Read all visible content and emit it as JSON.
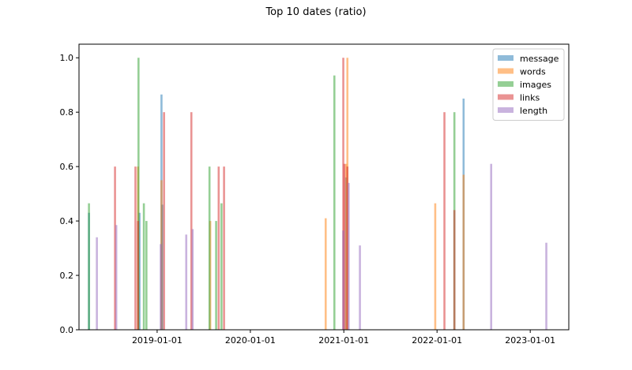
{
  "chart_data": {
    "type": "bar",
    "title": "Top 10 dates (ratio)",
    "xlabel": "",
    "ylabel": "",
    "x_axis": "date",
    "xlim": [
      "2018-03-01",
      "2023-06-01"
    ],
    "ylim": [
      0,
      1.05
    ],
    "x_ticks": [
      "2019-01-01",
      "2020-01-01",
      "2021-01-01",
      "2022-01-01",
      "2023-01-01"
    ],
    "y_ticks": [
      "0.0",
      "0.2",
      "0.4",
      "0.6",
      "0.8",
      "1.0"
    ],
    "grid": false,
    "legend_position": "top-right",
    "bar_alpha": 0.5,
    "series": [
      {
        "name": "message",
        "color": "#1f77b4",
        "points": [
          {
            "x": "2018-04-09",
            "y": 0.43
          },
          {
            "x": "2018-10-24",
            "y": 0.43
          },
          {
            "x": "2019-01-18",
            "y": 0.865
          },
          {
            "x": "2019-01-21",
            "y": 0.46
          },
          {
            "x": "2021-01-10",
            "y": 0.56
          },
          {
            "x": "2022-04-15",
            "y": 0.85
          }
        ]
      },
      {
        "name": "words",
        "color": "#ff7f0e",
        "points": [
          {
            "x": "2018-10-18",
            "y": 0.6
          },
          {
            "x": "2019-01-18",
            "y": 0.55
          },
          {
            "x": "2019-07-28",
            "y": 0.4
          },
          {
            "x": "2020-10-22",
            "y": 0.41
          },
          {
            "x": "2021-01-10",
            "y": 0.61
          },
          {
            "x": "2021-01-15",
            "y": 1.0
          },
          {
            "x": "2021-12-25",
            "y": 0.465
          },
          {
            "x": "2022-04-15",
            "y": 0.57
          }
        ]
      },
      {
        "name": "images",
        "color": "#2ca02c",
        "points": [
          {
            "x": "2018-04-09",
            "y": 0.465
          },
          {
            "x": "2018-10-20",
            "y": 1.0
          },
          {
            "x": "2018-11-10",
            "y": 0.465
          },
          {
            "x": "2018-11-20",
            "y": 0.4
          },
          {
            "x": "2019-07-25",
            "y": 0.6
          },
          {
            "x": "2019-08-20",
            "y": 0.4
          },
          {
            "x": "2019-09-10",
            "y": 0.465
          },
          {
            "x": "2020-11-25",
            "y": 0.935
          },
          {
            "x": "2022-03-10",
            "y": 0.8
          }
        ]
      },
      {
        "name": "links",
        "color": "#d62728",
        "points": [
          {
            "x": "2018-07-20",
            "y": 0.6
          },
          {
            "x": "2018-10-08",
            "y": 0.6
          },
          {
            "x": "2018-10-18",
            "y": 0.4
          },
          {
            "x": "2019-01-28",
            "y": 0.8
          },
          {
            "x": "2019-05-15",
            "y": 0.8
          },
          {
            "x": "2019-08-30",
            "y": 0.6
          },
          {
            "x": "2019-09-20",
            "y": 0.6
          },
          {
            "x": "2020-12-30",
            "y": 1.0
          },
          {
            "x": "2021-01-03",
            "y": 0.61
          },
          {
            "x": "2021-01-15",
            "y": 0.6
          },
          {
            "x": "2022-01-30",
            "y": 0.8
          },
          {
            "x": "2022-03-10",
            "y": 0.44
          }
        ]
      },
      {
        "name": "length",
        "color": "#9467bd",
        "points": [
          {
            "x": "2018-05-10",
            "y": 0.34
          },
          {
            "x": "2018-07-25",
            "y": 0.385
          },
          {
            "x": "2019-01-15",
            "y": 0.315
          },
          {
            "x": "2019-04-25",
            "y": 0.35
          },
          {
            "x": "2019-05-20",
            "y": 0.37
          },
          {
            "x": "2020-12-30",
            "y": 0.365
          },
          {
            "x": "2021-01-20",
            "y": 0.54
          },
          {
            "x": "2021-03-05",
            "y": 0.31
          },
          {
            "x": "2022-08-01",
            "y": 0.61
          },
          {
            "x": "2023-03-05",
            "y": 0.32
          }
        ]
      }
    ]
  }
}
